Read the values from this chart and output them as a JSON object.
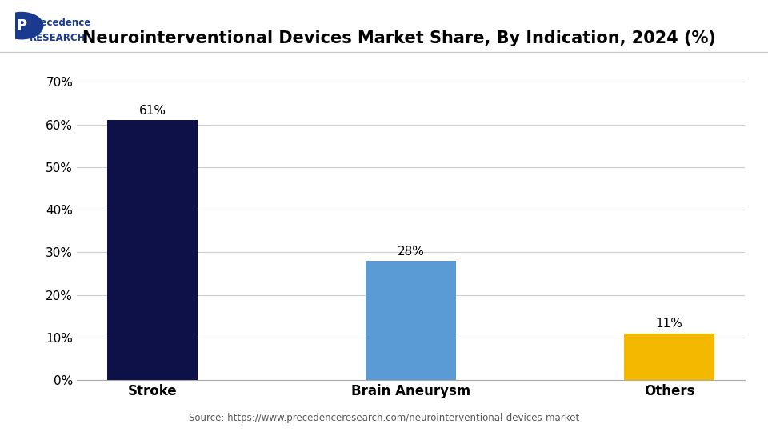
{
  "title": "Neurointerventional Devices Market Share, By Indication, 2024 (%)",
  "categories": [
    "Stroke",
    "Brain Aneurysm",
    "Others"
  ],
  "values": [
    61,
    28,
    11
  ],
  "bar_colors": [
    "#0d1147",
    "#5b9bd5",
    "#f5b800"
  ],
  "labels": [
    "61%",
    "28%",
    "11%"
  ],
  "yticks": [
    0,
    10,
    20,
    30,
    40,
    50,
    60,
    70
  ],
  "ytick_labels": [
    "0%",
    "10%",
    "20%",
    "30%",
    "40%",
    "50%",
    "60%",
    "70%"
  ],
  "ylim": [
    0,
    75
  ],
  "background_color": "#ffffff",
  "source_text": "Source: https://www.precedenceresearch.com/neurointerventional-devices-market",
  "title_fontsize": 15,
  "label_fontsize": 11,
  "tick_fontsize": 11,
  "bar_width": 0.35
}
